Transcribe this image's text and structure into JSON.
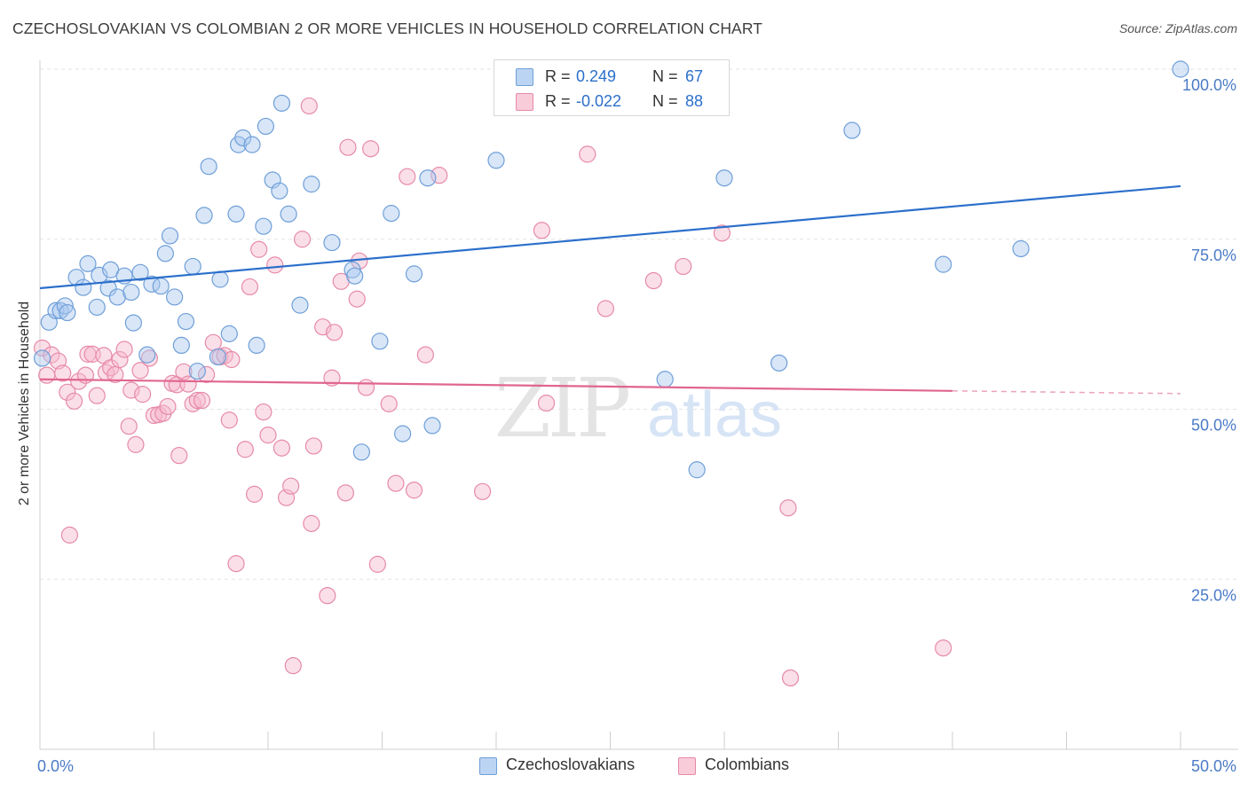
{
  "header": {
    "title": "CZECHOSLOVAKIAN VS COLOMBIAN 2 OR MORE VEHICLES IN HOUSEHOLD CORRELATION CHART",
    "source": "Source: ZipAtlas.com"
  },
  "watermark": {
    "zip": "ZIP",
    "atlas": "atlas"
  },
  "legend": {
    "r_label": "R =",
    "n_label": "N =",
    "rows": [
      {
        "r": "0.249",
        "n": "67"
      },
      {
        "r": "-0.022",
        "n": "88"
      }
    ]
  },
  "colors": {
    "blue_fill": "#a9c8f0",
    "blue_stroke": "#6f9fd8",
    "blue_line": "#2b6fcb",
    "pink_fill": "#f6b8cc",
    "pink_stroke": "#e68aa8",
    "pink_line": "#e0668f",
    "axis_text": "#4a7bc6",
    "grid": "#e3e3e3"
  },
  "chart_data": {
    "type": "scatter",
    "title": "CZECHOSLOVAKIAN VS COLOMBIAN 2 OR MORE VEHICLES IN HOUSEHOLD CORRELATION CHART",
    "xlabel": "",
    "ylabel": "2 or more Vehicles in Household",
    "xlim": [
      0,
      50
    ],
    "ylim": [
      0,
      100
    ],
    "x_tick_labels": [
      "0.0%",
      "50.0%"
    ],
    "y_tick_labels": [
      "25.0%",
      "50.0%",
      "75.0%",
      "100.0%"
    ],
    "y_ticks": [
      25,
      50,
      75,
      100
    ],
    "grid": true,
    "legend_position": "bottom-center",
    "series": [
      {
        "name": "Czechoslovakians",
        "color": "#a9c8f0",
        "r": 0.249,
        "n": 67,
        "trend": {
          "x": [
            0,
            50
          ],
          "y": [
            67.8,
            82.8
          ]
        },
        "points": [
          [
            0.1,
            57.5
          ],
          [
            0.4,
            62.8
          ],
          [
            0.7,
            64.5
          ],
          [
            0.9,
            64.5
          ],
          [
            1.1,
            65.2
          ],
          [
            1.2,
            64.2
          ],
          [
            1.6,
            69.4
          ],
          [
            1.9,
            67.9
          ],
          [
            2.1,
            71.4
          ],
          [
            2.5,
            65.0
          ],
          [
            2.6,
            69.7
          ],
          [
            3.0,
            67.8
          ],
          [
            3.1,
            70.5
          ],
          [
            3.4,
            66.5
          ],
          [
            3.7,
            69.6
          ],
          [
            4.0,
            67.2
          ],
          [
            4.1,
            62.7
          ],
          [
            4.4,
            70.1
          ],
          [
            4.7,
            58.0
          ],
          [
            4.9,
            68.4
          ],
          [
            5.3,
            68.1
          ],
          [
            5.5,
            72.9
          ],
          [
            5.7,
            75.5
          ],
          [
            5.9,
            66.5
          ],
          [
            6.2,
            59.4
          ],
          [
            6.4,
            62.9
          ],
          [
            6.7,
            71.0
          ],
          [
            6.9,
            55.6
          ],
          [
            7.2,
            78.5
          ],
          [
            7.4,
            85.7
          ],
          [
            7.8,
            57.7
          ],
          [
            7.9,
            69.1
          ],
          [
            8.3,
            61.1
          ],
          [
            8.6,
            78.7
          ],
          [
            8.7,
            88.9
          ],
          [
            8.9,
            89.9
          ],
          [
            9.3,
            88.9
          ],
          [
            9.5,
            59.4
          ],
          [
            9.8,
            76.9
          ],
          [
            9.9,
            91.6
          ],
          [
            10.2,
            83.7
          ],
          [
            10.5,
            82.1
          ],
          [
            10.6,
            95.0
          ],
          [
            10.9,
            78.7
          ],
          [
            11.4,
            65.3
          ],
          [
            11.9,
            83.1
          ],
          [
            12.8,
            74.5
          ],
          [
            13.7,
            70.5
          ],
          [
            13.8,
            69.6
          ],
          [
            14.9,
            60.0
          ],
          [
            15.4,
            78.8
          ],
          [
            15.9,
            46.4
          ],
          [
            16.4,
            69.9
          ],
          [
            17.0,
            84.0
          ],
          [
            17.2,
            47.6
          ],
          [
            20.0,
            86.6
          ],
          [
            23.3,
            100.0
          ],
          [
            23.9,
            100.0
          ],
          [
            27.4,
            54.4
          ],
          [
            28.8,
            41.1
          ],
          [
            30.0,
            84.0
          ],
          [
            32.4,
            56.8
          ],
          [
            35.6,
            91.0
          ],
          [
            39.6,
            71.3
          ],
          [
            43.0,
            73.6
          ],
          [
            50.0,
            100.0
          ],
          [
            14.1,
            43.7
          ]
        ]
      },
      {
        "name": "Colombians",
        "color": "#f6b8cc",
        "r": -0.022,
        "n": 88,
        "trend": {
          "x": [
            0,
            40
          ],
          "y": [
            54.4,
            52.7
          ]
        },
        "trend_dashed": {
          "x": [
            40,
            50
          ],
          "y": [
            52.7,
            52.3
          ]
        },
        "points": [
          [
            0.1,
            59.0
          ],
          [
            0.3,
            55.0
          ],
          [
            0.5,
            58.0
          ],
          [
            0.8,
            57.1
          ],
          [
            1.0,
            55.3
          ],
          [
            1.2,
            52.5
          ],
          [
            1.3,
            31.5
          ],
          [
            1.5,
            51.2
          ],
          [
            1.7,
            54.1
          ],
          [
            2.0,
            55.0
          ],
          [
            2.1,
            58.1
          ],
          [
            2.3,
            58.1
          ],
          [
            2.5,
            52.0
          ],
          [
            2.8,
            57.9
          ],
          [
            2.9,
            55.4
          ],
          [
            3.1,
            56.1
          ],
          [
            3.3,
            55.1
          ],
          [
            3.5,
            57.3
          ],
          [
            3.7,
            58.8
          ],
          [
            3.9,
            47.5
          ],
          [
            4.0,
            52.8
          ],
          [
            4.2,
            44.8
          ],
          [
            4.4,
            55.7
          ],
          [
            4.5,
            52.2
          ],
          [
            4.8,
            57.5
          ],
          [
            5.0,
            49.1
          ],
          [
            5.2,
            49.2
          ],
          [
            5.4,
            49.4
          ],
          [
            5.6,
            50.4
          ],
          [
            5.8,
            53.8
          ],
          [
            6.0,
            53.6
          ],
          [
            6.1,
            43.2
          ],
          [
            6.3,
            55.5
          ],
          [
            6.5,
            53.7
          ],
          [
            6.7,
            50.8
          ],
          [
            6.9,
            51.3
          ],
          [
            7.1,
            51.3
          ],
          [
            7.3,
            55.1
          ],
          [
            7.6,
            59.8
          ],
          [
            7.9,
            57.7
          ],
          [
            8.1,
            57.9
          ],
          [
            8.3,
            48.4
          ],
          [
            8.4,
            57.3
          ],
          [
            8.6,
            27.3
          ],
          [
            9.0,
            44.1
          ],
          [
            9.2,
            68.0
          ],
          [
            9.4,
            37.5
          ],
          [
            9.6,
            73.5
          ],
          [
            9.8,
            49.6
          ],
          [
            10.0,
            46.2
          ],
          [
            10.3,
            71.2
          ],
          [
            10.6,
            44.3
          ],
          [
            10.8,
            37.0
          ],
          [
            11.0,
            38.7
          ],
          [
            11.1,
            12.3
          ],
          [
            11.5,
            75.0
          ],
          [
            11.9,
            33.2
          ],
          [
            12.0,
            44.6
          ],
          [
            12.4,
            62.1
          ],
          [
            12.6,
            22.6
          ],
          [
            12.8,
            54.6
          ],
          [
            12.9,
            61.3
          ],
          [
            13.2,
            68.8
          ],
          [
            13.4,
            37.7
          ],
          [
            13.5,
            88.5
          ],
          [
            13.9,
            66.2
          ],
          [
            14.0,
            71.8
          ],
          [
            14.3,
            53.2
          ],
          [
            14.5,
            88.3
          ],
          [
            14.8,
            27.2
          ],
          [
            15.3,
            50.8
          ],
          [
            15.6,
            39.1
          ],
          [
            16.1,
            84.2
          ],
          [
            16.4,
            38.1
          ],
          [
            16.9,
            58.0
          ],
          [
            17.5,
            84.4
          ],
          [
            19.4,
            37.9
          ],
          [
            22.0,
            76.3
          ],
          [
            22.2,
            50.9
          ],
          [
            24.0,
            87.5
          ],
          [
            24.8,
            64.8
          ],
          [
            26.9,
            68.9
          ],
          [
            28.2,
            71.0
          ],
          [
            29.9,
            75.9
          ],
          [
            32.8,
            35.5
          ],
          [
            32.9,
            10.5
          ],
          [
            39.6,
            14.9
          ],
          [
            11.8,
            94.6
          ]
        ]
      }
    ]
  }
}
